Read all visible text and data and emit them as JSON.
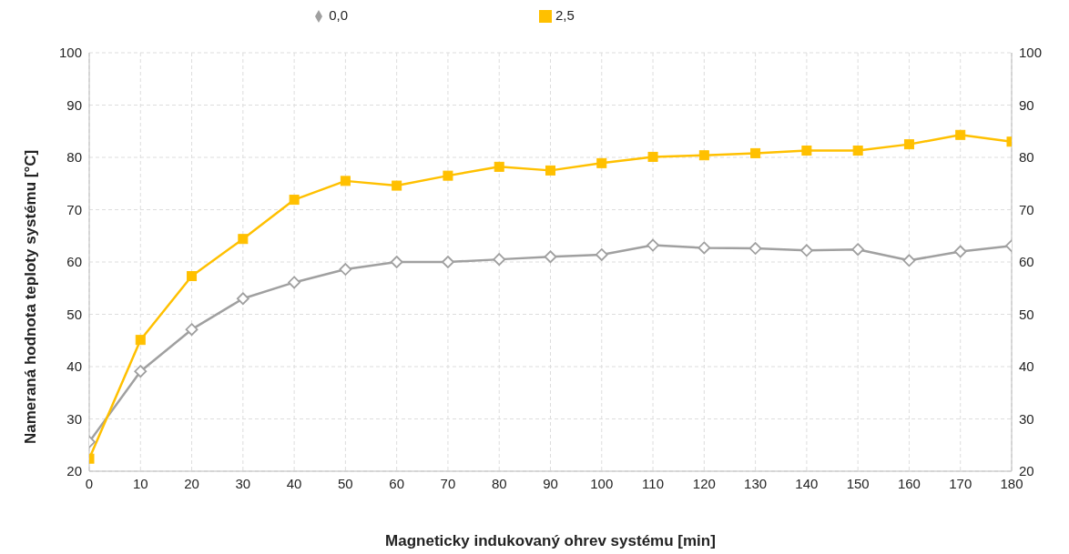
{
  "chart_data": {
    "type": "line",
    "xlabel": "Magneticky indukovaný ohrev systému [min]",
    "ylabel": "Nameraná hodnota teploty systému   [°C]",
    "x": [
      0,
      10,
      20,
      30,
      40,
      50,
      60,
      70,
      80,
      90,
      100,
      110,
      120,
      130,
      140,
      150,
      160,
      170,
      180
    ],
    "series": [
      {
        "name": "0,0",
        "color": "#a0a0a0",
        "marker": "diamond",
        "values": [
          25.6,
          39.1,
          47.1,
          53,
          56.1,
          58.6,
          60,
          60,
          60.5,
          61,
          61.4,
          63.2,
          62.7,
          62.6,
          62.2,
          62.4,
          60.3,
          62,
          63.1
        ]
      },
      {
        "name": "2,5",
        "color": "#ffc000",
        "marker": "square",
        "values": [
          22.4,
          45.1,
          57.3,
          64.4,
          71.9,
          75.5,
          74.6,
          76.5,
          78.2,
          77.5,
          78.9,
          80.1,
          80.4,
          80.8,
          81.3,
          81.3,
          82.5,
          84.3,
          83
        ]
      }
    ],
    "xlim": [
      0,
      180
    ],
    "xticks": [
      0,
      10,
      20,
      30,
      40,
      50,
      60,
      70,
      80,
      90,
      100,
      110,
      120,
      130,
      140,
      150,
      160,
      170,
      180
    ],
    "ylim": [
      20,
      100
    ],
    "yticks": [
      20,
      30,
      40,
      50,
      60,
      70,
      80,
      90,
      100
    ],
    "y2lim": [
      20,
      100
    ],
    "y2ticks": [
      20,
      30,
      40,
      50,
      60,
      70,
      80,
      90,
      100
    ],
    "grid": true,
    "legend": "top",
    "line_style": "solid"
  }
}
